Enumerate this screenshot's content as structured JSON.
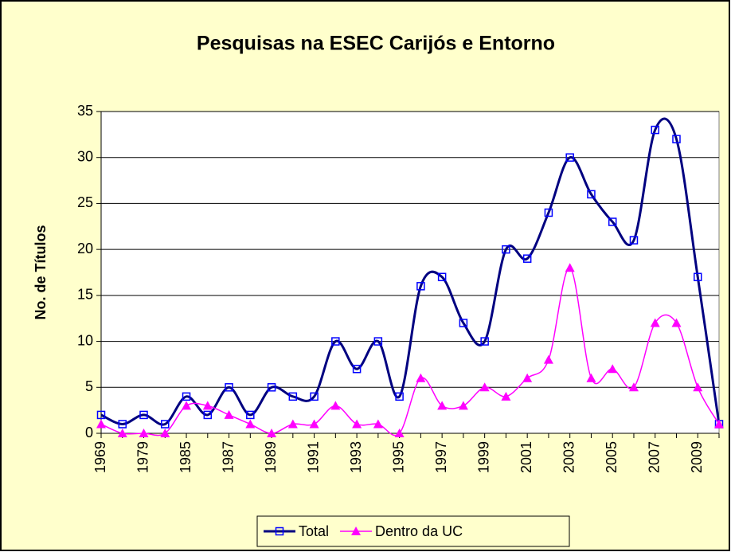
{
  "chart_data": {
    "type": "line",
    "title": "Pesquisas na ESEC Carijós e Entorno",
    "y_label": "No. de Títulos",
    "categories": [
      "1969",
      null,
      "1979",
      null,
      "1985",
      null,
      "1987",
      null,
      "1989",
      null,
      "1991",
      null,
      "1993",
      null,
      "1995",
      null,
      "1997",
      null,
      "1999",
      null,
      "2001",
      null,
      "2003",
      null,
      "2005",
      null,
      "2007",
      null,
      "2009",
      null
    ],
    "series": [
      {
        "name": "Total",
        "color": "#000080",
        "marker_color": "#0000ff",
        "marker": "square",
        "values": [
          2,
          1,
          2,
          1,
          4,
          2,
          5,
          2,
          5,
          4,
          4,
          10,
          7,
          10,
          4,
          16,
          17,
          12,
          10,
          20,
          19,
          24,
          30,
          26,
          23,
          21,
          33,
          32,
          17,
          1
        ]
      },
      {
        "name": "Dentro da UC",
        "color": "#ff00ff",
        "marker_color": "#ff00ff",
        "marker": "triangle",
        "values": [
          1,
          0,
          0,
          0,
          3,
          3,
          2,
          1,
          0,
          1,
          1,
          3,
          1,
          1,
          0,
          6,
          3,
          3,
          5,
          4,
          6,
          8,
          18,
          6,
          7,
          5,
          12,
          12,
          5,
          1
        ]
      }
    ],
    "ylim": [
      0,
      35
    ],
    "yticks": [
      0,
      5,
      10,
      15,
      20,
      25,
      30,
      35
    ],
    "grid": true,
    "smooth": true,
    "legend": "bottom"
  }
}
